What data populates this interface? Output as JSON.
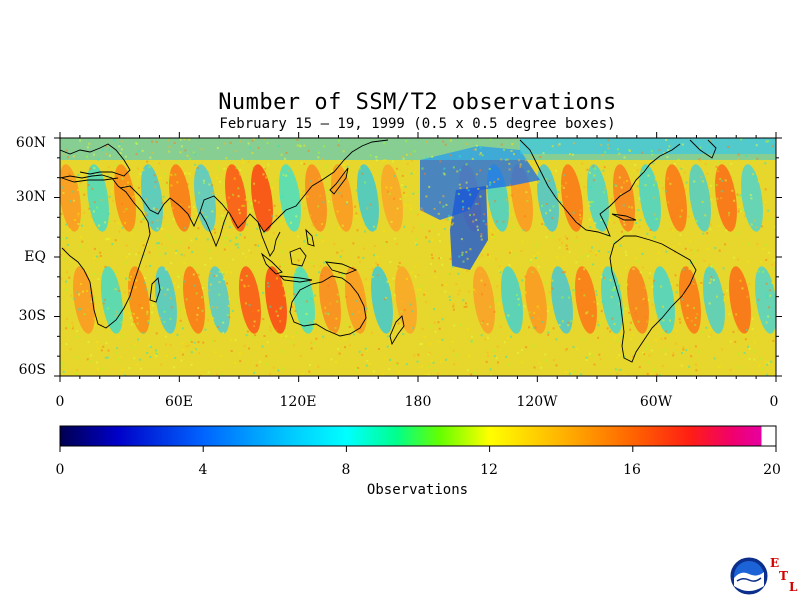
{
  "title": "Number of SSM/T2 observations",
  "subtitle": "February 15 – 19, 1999 (0.5 x 0.5 degree boxes)",
  "lat_labels": [
    "60N",
    "30N",
    "EQ",
    "30S",
    "60S"
  ],
  "lon_labels": [
    "0",
    "60E",
    "120E",
    "180",
    "120W",
    "60W",
    "0"
  ],
  "colorbar": {
    "ticks": [
      "0",
      "4",
      "8",
      "12",
      "16",
      "20"
    ],
    "label": "Observations",
    "range": [
      0,
      20
    ],
    "colors": [
      "#000060",
      "#0000c8",
      "#0064ff",
      "#00c8ff",
      "#00ffff",
      "#00ff64",
      "#64ff00",
      "#ffff00",
      "#ffc800",
      "#ff8200",
      "#ff3c00",
      "#ff0050",
      "#e6009c",
      "#ffffff"
    ]
  },
  "logo": {
    "name": "NOAA",
    "etl_letters": [
      "E",
      "T",
      "L"
    ]
  },
  "colors": {
    "background": "#ffffff",
    "frame": "#000000",
    "coast": "#000000",
    "etl_red": "#d40000"
  }
}
